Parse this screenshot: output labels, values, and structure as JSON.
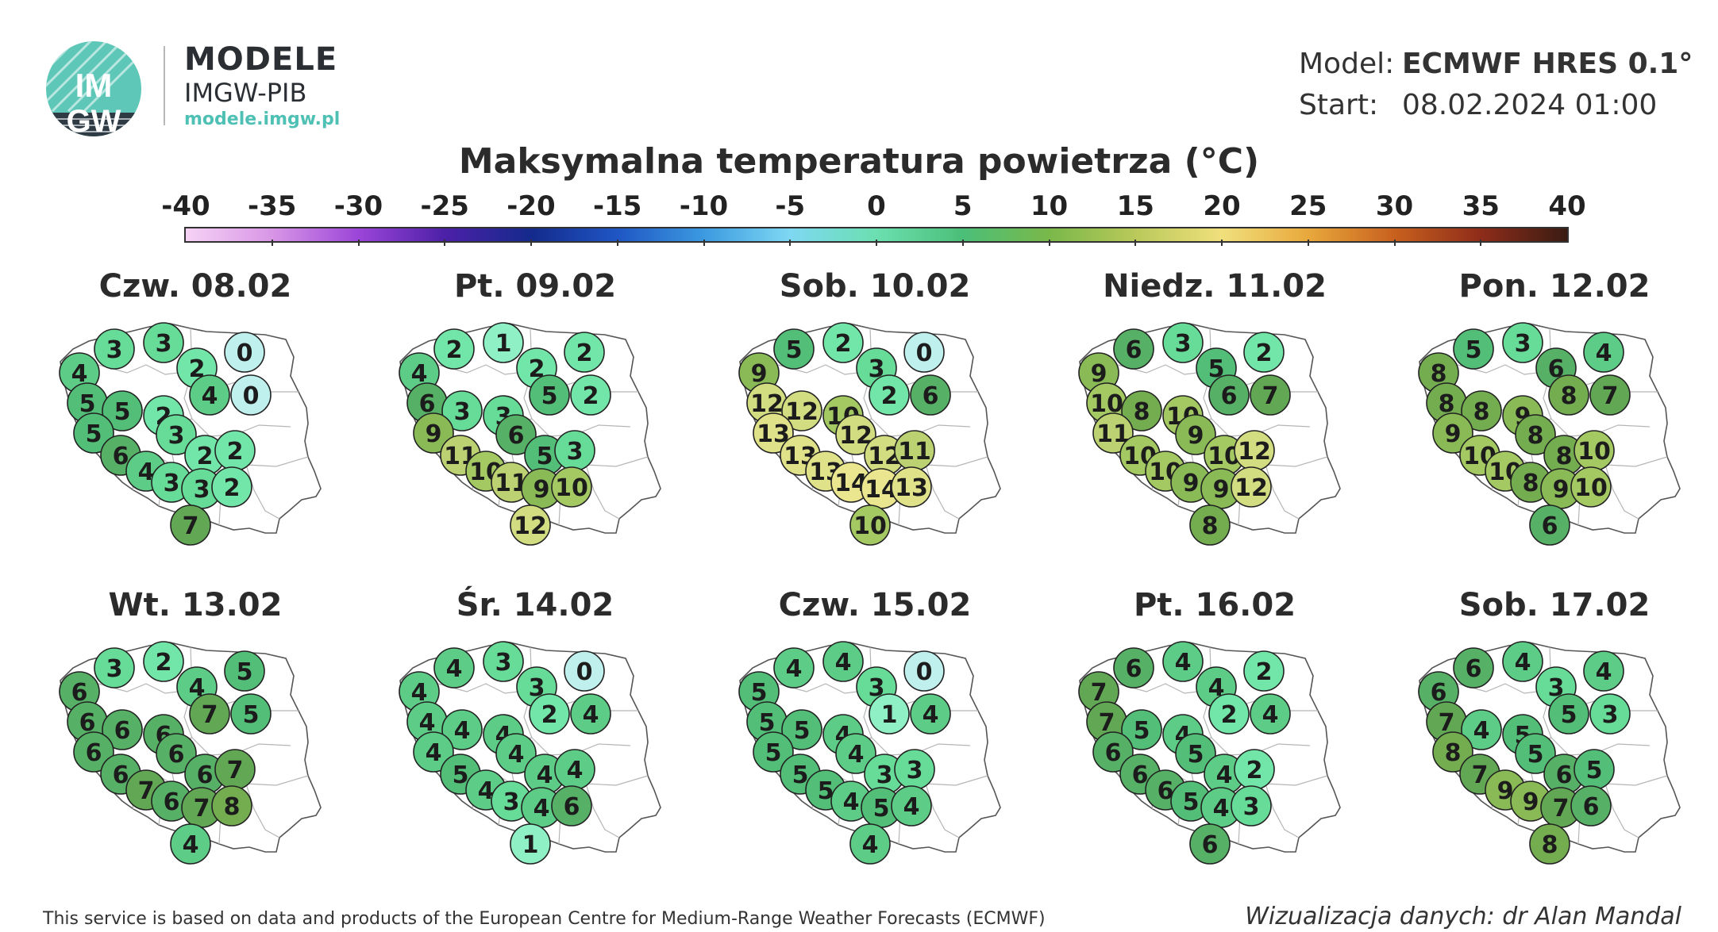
{
  "brand": {
    "logo_text_top": "IM",
    "logo_text_bottom": "GW",
    "title": "MODELE",
    "subtitle": "IMGW-PIB",
    "url": "modele.imgw.pl"
  },
  "info": {
    "model_label": "Model:",
    "model_value": "ECMWF HRES 0.1°",
    "start_label": "Start:",
    "start_value": "08.02.2024 01:00"
  },
  "map_title": "Maksymalna temperatura powietrza (°C)",
  "colorbar": {
    "min": -40,
    "max": 40,
    "ticks": [
      "-40",
      "-35",
      "-30",
      "-25",
      "-20",
      "-15",
      "-10",
      "-5",
      "0",
      "5",
      "10",
      "15",
      "20",
      "25",
      "30",
      "35",
      "40"
    ]
  },
  "panels": [
    {
      "title": "Czw. 08.02",
      "values": [
        3,
        3,
        4,
        2,
        0,
        0,
        4,
        5,
        5,
        2,
        5,
        3,
        6,
        2,
        2,
        4,
        3,
        3,
        2,
        7
      ]
    },
    {
      "title": "Pt. 09.02",
      "values": [
        2,
        1,
        4,
        2,
        2,
        2,
        5,
        6,
        3,
        3,
        9,
        6,
        11,
        5,
        3,
        10,
        11,
        9,
        10,
        12
      ]
    },
    {
      "title": "Sob. 10.02",
      "values": [
        5,
        2,
        9,
        3,
        0,
        6,
        2,
        12,
        12,
        10,
        13,
        12,
        13,
        12,
        11,
        13,
        14,
        14,
        13,
        10
      ]
    },
    {
      "title": "Niedz. 11.02",
      "values": [
        6,
        3,
        9,
        5,
        2,
        7,
        6,
        10,
        8,
        10,
        11,
        9,
        10,
        10,
        12,
        10,
        9,
        9,
        12,
        8
      ]
    },
    {
      "title": "Pon. 12.02",
      "values": [
        5,
        3,
        8,
        6,
        4,
        7,
        8,
        8,
        8,
        9,
        9,
        8,
        10,
        8,
        10,
        10,
        8,
        9,
        10,
        6
      ]
    },
    {
      "title": "Wt. 13.02",
      "values": [
        3,
        2,
        6,
        4,
        5,
        5,
        7,
        6,
        6,
        6,
        6,
        6,
        6,
        6,
        7,
        7,
        6,
        7,
        8,
        4
      ]
    },
    {
      "title": "Śr. 14.02",
      "values": [
        4,
        3,
        4,
        3,
        0,
        4,
        2,
        4,
        4,
        4,
        4,
        4,
        5,
        4,
        4,
        4,
        3,
        4,
        6,
        1
      ]
    },
    {
      "title": "Czw. 15.02",
      "values": [
        4,
        4,
        5,
        3,
        0,
        4,
        1,
        5,
        5,
        4,
        5,
        4,
        5,
        3,
        3,
        5,
        4,
        5,
        4,
        4
      ]
    },
    {
      "title": "Pt. 16.02",
      "values": [
        6,
        4,
        7,
        4,
        2,
        4,
        2,
        7,
        5,
        4,
        6,
        5,
        6,
        4,
        2,
        6,
        5,
        4,
        3,
        6
      ]
    },
    {
      "title": "Sob. 17.02",
      "values": [
        6,
        4,
        6,
        3,
        4,
        3,
        5,
        7,
        4,
        5,
        8,
        5,
        7,
        6,
        5,
        9,
        9,
        7,
        6,
        8
      ]
    }
  ],
  "footer": {
    "left": "This service is based on data and products of the European Centre for Medium-Range Weather Forecasts (ECMWF)",
    "right": "Wizualizacja danych: dr Alan Mandal"
  }
}
